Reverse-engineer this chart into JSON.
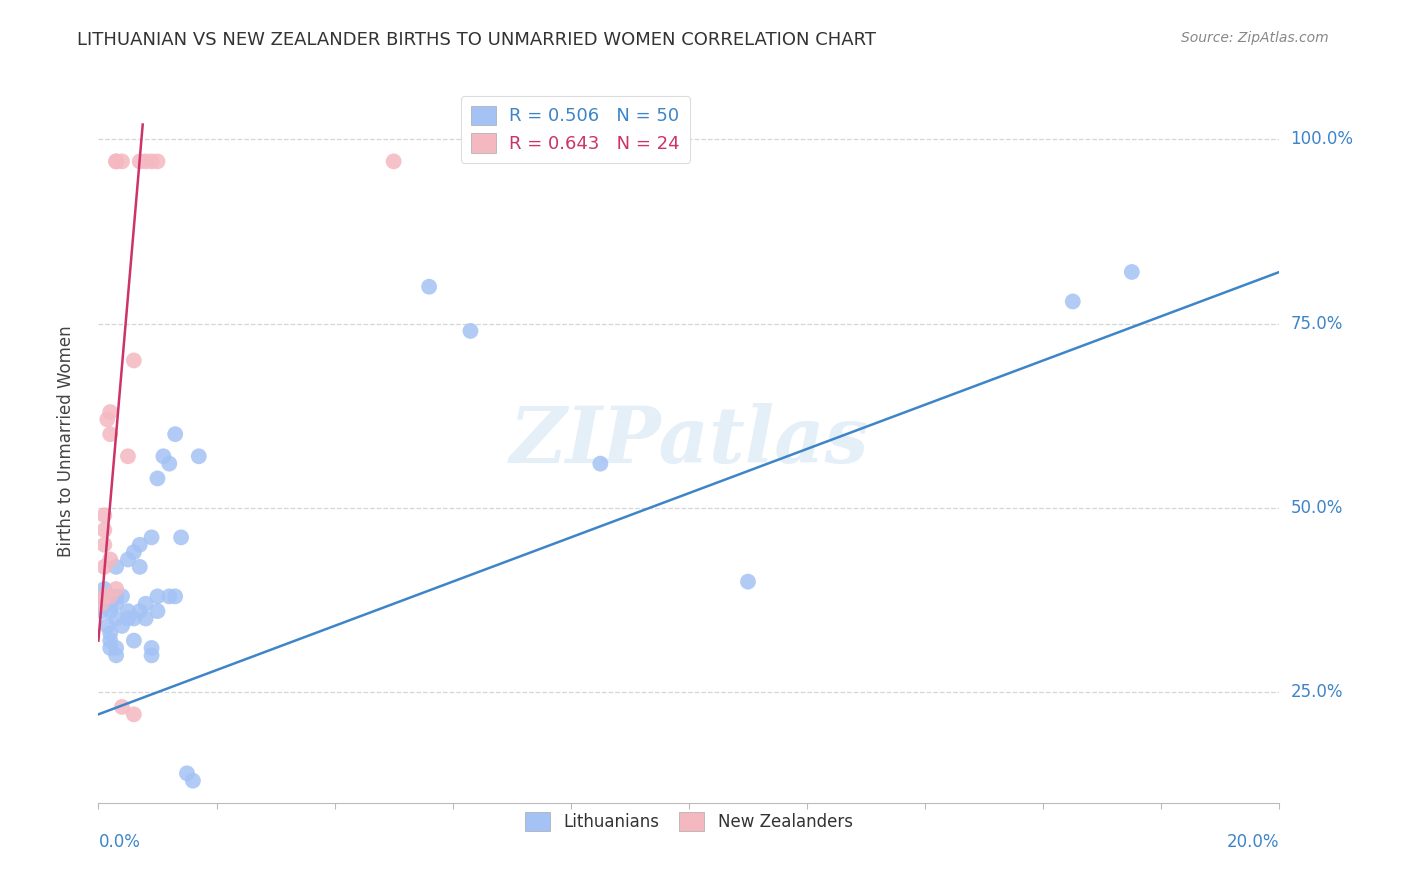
{
  "title": "LITHUANIAN VS NEW ZEALANDER BIRTHS TO UNMARRIED WOMEN CORRELATION CHART",
  "source": "Source: ZipAtlas.com",
  "ylabel": "Births to Unmarried Women",
  "legend_label1": "Lithuanians",
  "legend_label2": "New Zealanders",
  "legend_r1": "R = 0.506",
  "legend_n1": "N = 50",
  "legend_r2": "R = 0.643",
  "legend_n2": "N = 24",
  "watermark": "ZIPatlas",
  "color_blue": "#a4c2f4",
  "color_pink": "#f4b8c1",
  "color_blue_line": "#3d85c8",
  "color_pink_line": "#cc3366",
  "color_blue_text": "#3d85c8",
  "color_axis_text": "#555555",
  "ytick_labels": [
    "25.0%",
    "50.0%",
    "75.0%",
    "100.0%"
  ],
  "ytick_values": [
    0.25,
    0.5,
    0.75,
    1.0
  ],
  "xlim": [
    0.0,
    0.2
  ],
  "ylim": [
    0.1,
    1.08
  ],
  "blue_points_x": [
    0.0005,
    0.001,
    0.001,
    0.001,
    0.0015,
    0.002,
    0.002,
    0.002,
    0.002,
    0.002,
    0.003,
    0.003,
    0.003,
    0.003,
    0.003,
    0.003,
    0.004,
    0.004,
    0.005,
    0.005,
    0.005,
    0.006,
    0.006,
    0.006,
    0.007,
    0.007,
    0.007,
    0.008,
    0.008,
    0.009,
    0.009,
    0.009,
    0.01,
    0.01,
    0.01,
    0.011,
    0.012,
    0.012,
    0.013,
    0.013,
    0.014,
    0.015,
    0.016,
    0.017,
    0.056,
    0.063,
    0.085,
    0.11,
    0.165,
    0.175
  ],
  "blue_points_y": [
    0.36,
    0.37,
    0.38,
    0.39,
    0.34,
    0.31,
    0.32,
    0.33,
    0.36,
    0.37,
    0.3,
    0.31,
    0.35,
    0.37,
    0.38,
    0.42,
    0.34,
    0.38,
    0.35,
    0.36,
    0.43,
    0.32,
    0.35,
    0.44,
    0.36,
    0.42,
    0.45,
    0.35,
    0.37,
    0.3,
    0.31,
    0.46,
    0.36,
    0.38,
    0.54,
    0.57,
    0.38,
    0.56,
    0.38,
    0.6,
    0.46,
    0.14,
    0.13,
    0.57,
    0.8,
    0.74,
    0.56,
    0.4,
    0.78,
    0.82
  ],
  "pink_points_x": [
    0.0005,
    0.001,
    0.001,
    0.001,
    0.001,
    0.001,
    0.0015,
    0.002,
    0.002,
    0.002,
    0.002,
    0.003,
    0.003,
    0.003,
    0.004,
    0.004,
    0.005,
    0.006,
    0.006,
    0.007,
    0.008,
    0.009,
    0.01,
    0.05
  ],
  "pink_points_y": [
    0.37,
    0.38,
    0.42,
    0.45,
    0.47,
    0.49,
    0.62,
    0.38,
    0.43,
    0.6,
    0.63,
    0.39,
    0.97,
    0.97,
    0.23,
    0.97,
    0.57,
    0.22,
    0.7,
    0.97,
    0.97,
    0.97,
    0.97,
    0.97
  ],
  "blue_line_x": [
    0.0,
    0.2
  ],
  "blue_line_y": [
    0.22,
    0.82
  ],
  "pink_line_x": [
    0.0,
    0.0075
  ],
  "pink_line_y": [
    0.32,
    1.02
  ]
}
